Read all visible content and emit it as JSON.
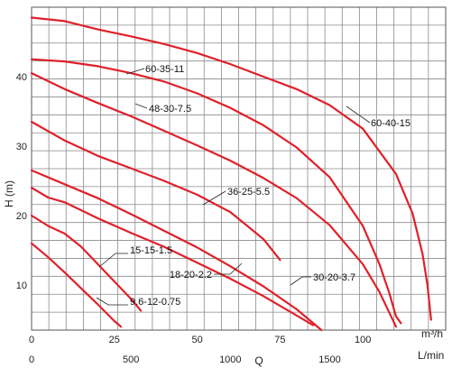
{
  "chart_data": {
    "type": "line",
    "title": "",
    "xlabel": "Q",
    "ylabel": "H (m)",
    "x_unit_top": "m³/h",
    "x_unit_bottom": "L/min",
    "xlim": [
      0,
      125
    ],
    "ylim": [
      3.5,
      50
    ],
    "grid": true,
    "x_ticks_top": [
      "0",
      "25",
      "50",
      "75",
      "100"
    ],
    "x_ticks_top_values": [
      0,
      25,
      50,
      75,
      100
    ],
    "x_ticks_bottom": [
      "0",
      "500",
      "1000",
      "1500"
    ],
    "x_ticks_bottom_values_lmin": [
      0,
      500,
      1000,
      1500
    ],
    "y_ticks": [
      "10",
      "20",
      "30",
      "40"
    ],
    "y_ticks_values": [
      10,
      20,
      30,
      40
    ],
    "series_color": "#e0202a",
    "series": [
      {
        "name": "60-40-15",
        "x": [
          0,
          10,
          20,
          30,
          40,
          50,
          60,
          70,
          80,
          90,
          100,
          110,
          115,
          118,
          119.5,
          120.6
        ],
        "y": [
          48.5,
          48.0,
          46.8,
          45.8,
          44.7,
          43.4,
          41.8,
          40.0,
          38.2,
          35.9,
          32.5,
          26.0,
          20.3,
          14.5,
          10.0,
          5.0
        ]
      },
      {
        "name": "60-35-11",
        "x": [
          0,
          10,
          20,
          30,
          40,
          50,
          60,
          70,
          80,
          90,
          100,
          105,
          108,
          110,
          111.5
        ],
        "y": [
          42.5,
          42.2,
          41.5,
          40.5,
          39.3,
          37.6,
          35.5,
          33.0,
          29.8,
          25.5,
          18.5,
          13.0,
          8.8,
          5.5,
          4.5
        ]
      },
      {
        "name": "48-30-7.5",
        "x": [
          0,
          10,
          20,
          30,
          40,
          50,
          60,
          70,
          80,
          90,
          100,
          105,
          108,
          110
        ],
        "y": [
          40.5,
          38.2,
          36.2,
          34.3,
          32.2,
          30.1,
          27.9,
          25.4,
          22.5,
          18.6,
          13.0,
          9.0,
          6.0,
          4.0
        ]
      },
      {
        "name": "36-25-5.5",
        "x": [
          0,
          10,
          20,
          30,
          40,
          50,
          60,
          70,
          75
        ],
        "y": [
          33.5,
          30.8,
          28.6,
          26.8,
          25.0,
          23.0,
          20.5,
          16.6,
          13.6
        ]
      },
      {
        "name": "30-20-3.7",
        "x": [
          0,
          10,
          20,
          30,
          40,
          50,
          60,
          70,
          80,
          87.5
        ],
        "y": [
          26.5,
          24.5,
          22.5,
          20.2,
          17.8,
          15.4,
          12.7,
          9.8,
          6.5,
          3.5
        ]
      },
      {
        "name": "18-20-2.2",
        "x": [
          0,
          5,
          10,
          20,
          30,
          40,
          50,
          60,
          70,
          80,
          85
        ],
        "y": [
          24.0,
          22.6,
          21.9,
          19.6,
          17.5,
          15.5,
          13.2,
          10.9,
          8.4,
          5.6,
          4.2
        ]
      },
      {
        "name": "15-15-1.5",
        "x": [
          0,
          5,
          10,
          15,
          20,
          25,
          30,
          33
        ],
        "y": [
          20.0,
          18.5,
          17.4,
          15.5,
          13.0,
          10.5,
          8.0,
          6.3
        ]
      },
      {
        "name": "9.6-12-0.75",
        "x": [
          0,
          5,
          10,
          15,
          20,
          25,
          27
        ],
        "y": [
          16.0,
          14.0,
          11.8,
          9.5,
          7.2,
          4.8,
          4.0
        ]
      }
    ]
  }
}
